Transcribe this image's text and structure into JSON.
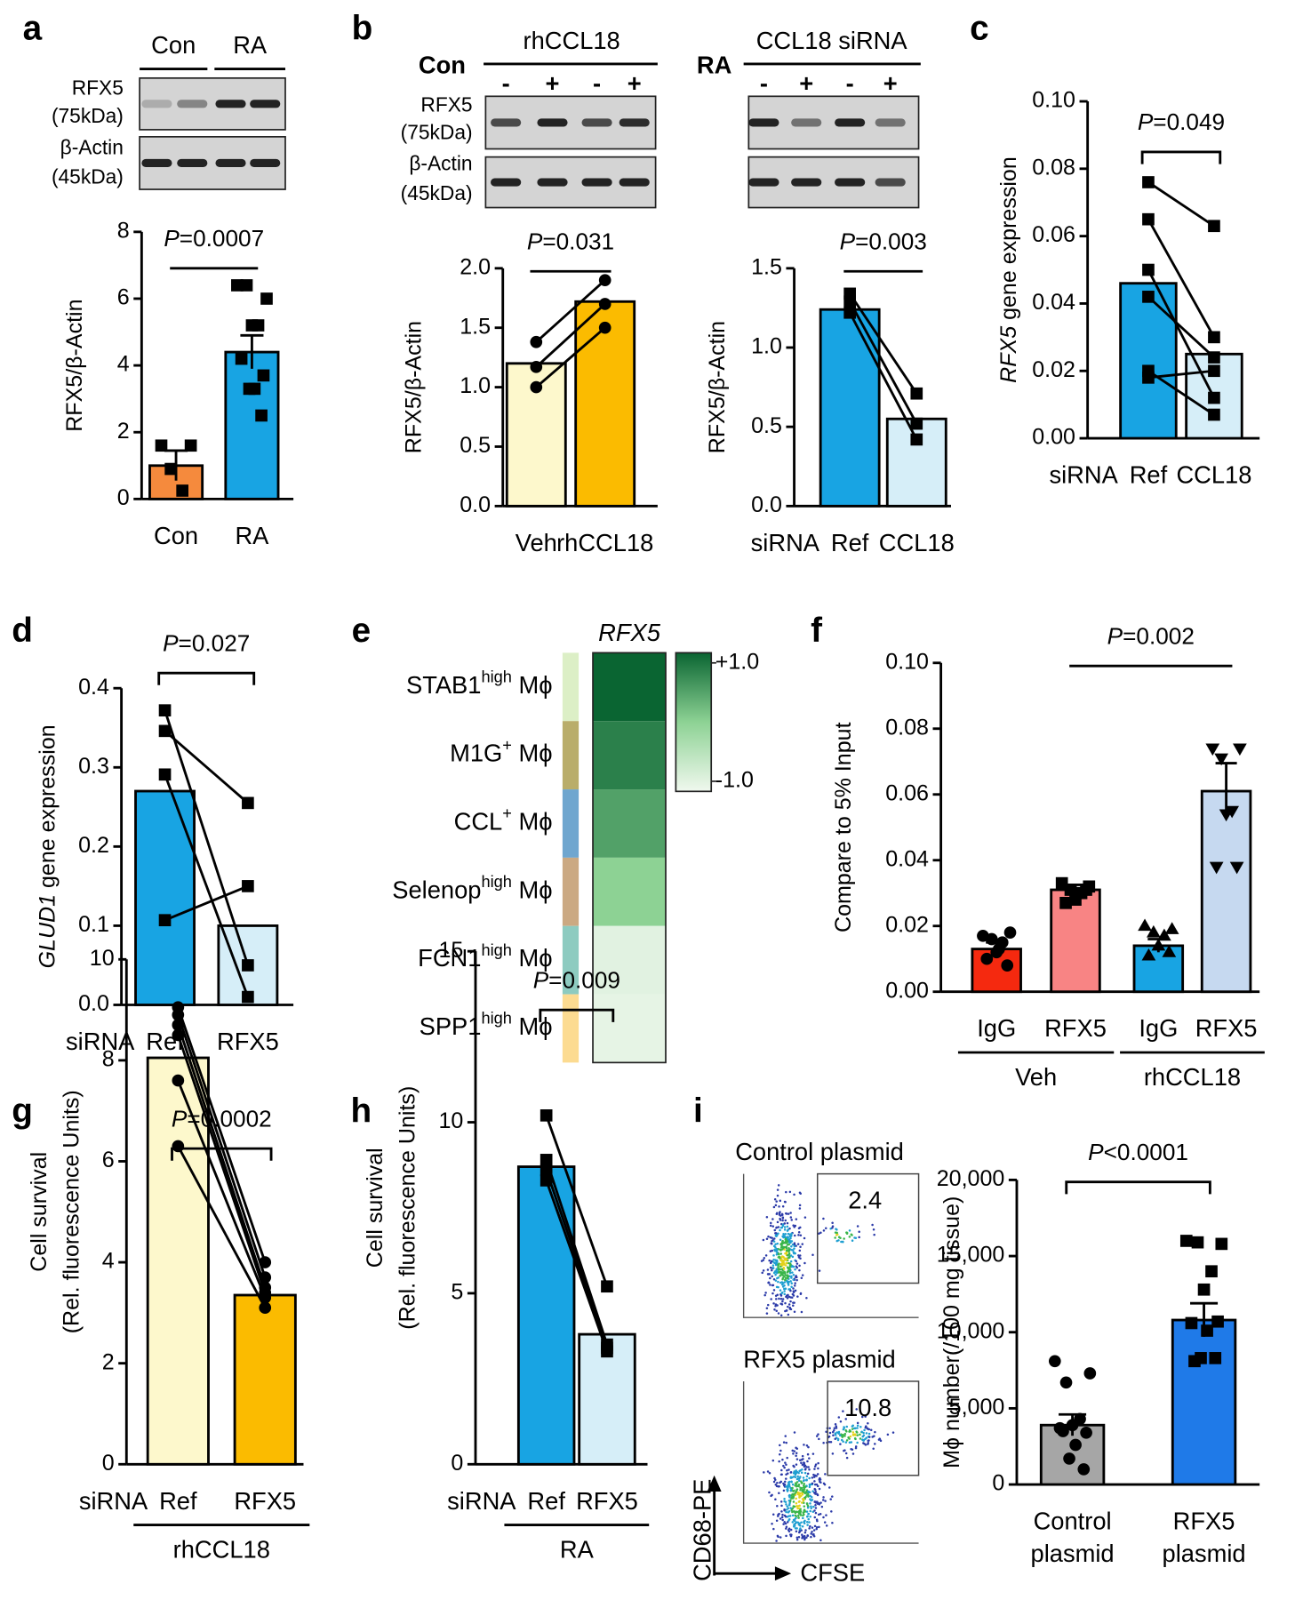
{
  "chart_data": [
    {
      "panel": "a",
      "type": "bar",
      "blot": {
        "columns": [
          "Con",
          "RA"
        ],
        "rows": [
          [
            "RFX5",
            "(75kDa)"
          ],
          [
            "β-Actin",
            "(45kDa)"
          ]
        ]
      },
      "categories": [
        "Con",
        "RA"
      ],
      "values": [
        1.0,
        4.4
      ],
      "errors": [
        0.45,
        0.5
      ],
      "colors": [
        "#f58a3d",
        "#18a4e3"
      ],
      "marker": "square",
      "points": [
        [
          1.6,
          1.6,
          0.9,
          0.25
        ],
        [
          6.4,
          6.0,
          6.4,
          5.2,
          5.2,
          4.2,
          3.7,
          3.3,
          3.3,
          2.5
        ]
      ],
      "paired": false,
      "ylim": [
        0,
        8
      ],
      "yticks": [
        0,
        2,
        4,
        6,
        8
      ],
      "ylabel": "RFX5/β-Actin",
      "annotation": "P=0.0007",
      "bracket": false
    },
    {
      "panel": "b",
      "type": "bar",
      "blot": {
        "treatment": "rhCCL18",
        "condition": "Con",
        "lanes": [
          "-",
          "+",
          "-",
          "+"
        ],
        "rows": [
          [
            "RFX5",
            "(75kDa)"
          ],
          [
            "β-Actin",
            "(45kDa)"
          ]
        ]
      },
      "categories": [
        "Veh",
        "rhCCL18"
      ],
      "values": [
        1.2,
        1.72
      ],
      "colors": [
        "#fdf8cc",
        "#fbbb00"
      ],
      "marker": "circle",
      "points": [
        [
          1.38,
          1.0,
          1.17
        ],
        [
          1.9,
          1.5,
          1.7
        ]
      ],
      "paired": true,
      "ylim": [
        0,
        2
      ],
      "yticks": [
        {
          "value": 0,
          "label": "0.0"
        },
        {
          "value": 0.5,
          "label": "0.5"
        },
        {
          "value": 1,
          "label": "1.0"
        },
        {
          "value": 1.5,
          "label": "1.5"
        },
        {
          "value": 2,
          "label": "2.0"
        }
      ],
      "ylabel": "RFX5/β-Actin",
      "annotation": "P=0.031",
      "bracket": false
    },
    {
      "type": "bar",
      "blot": {
        "treatment": "CCL18 siRNA",
        "condition": "RA",
        "lanes": [
          "-",
          "+",
          "-",
          "+"
        ]
      },
      "x_prefix": "siRNA",
      "categories": [
        "Ref",
        "CCL18"
      ],
      "values": [
        1.24,
        0.55
      ],
      "colors": [
        "#18a4e3",
        "#d6eef8"
      ],
      "marker": "square",
      "points": [
        [
          1.34,
          1.29,
          1.22
        ],
        [
          0.71,
          0.52,
          0.42
        ]
      ],
      "paired": true,
      "ylim": [
        0,
        1.5
      ],
      "yticks": [
        {
          "value": 0,
          "label": "0.0"
        },
        {
          "value": 0.5,
          "label": "0.5"
        },
        {
          "value": 1,
          "label": "1.0"
        },
        {
          "value": 1.5,
          "label": "1.5"
        }
      ],
      "ylabel": "RFX5/β-Actin",
      "annotation": "P=0.003",
      "bracket": false
    },
    {
      "panel": "c",
      "type": "bar",
      "x_prefix": "siRNA",
      "categories": [
        "Ref",
        "CCL18"
      ],
      "values": [
        0.046,
        0.025
      ],
      "colors": [
        "#18a4e3",
        "#d6eef8"
      ],
      "marker": "square",
      "points": [
        [
          0.076,
          0.065,
          0.05,
          0.042,
          0.02,
          0.018
        ],
        [
          0.063,
          0.03,
          0.012,
          0.024,
          0.007,
          0.02
        ]
      ],
      "paired": true,
      "ylim": [
        0,
        0.1
      ],
      "yticks": [
        {
          "value": 0,
          "label": "0.00"
        },
        {
          "value": 0.02,
          "label": "0.02"
        },
        {
          "value": 0.04,
          "label": "0.04"
        },
        {
          "value": 0.06,
          "label": "0.06"
        },
        {
          "value": 0.08,
          "label": "0.08"
        },
        {
          "value": 0.1,
          "label": "0.10"
        }
      ],
      "ylabel": "RFX5 gene expression",
      "ylabel_italic_word": true,
      "annotation": "P=0.049",
      "bracket": true
    },
    {
      "panel": "d",
      "type": "bar",
      "x_prefix": "siRNA",
      "categories": [
        "Ref",
        "RFX5"
      ],
      "values": [
        0.27,
        0.1
      ],
      "colors": [
        "#18a4e3",
        "#d6eef8"
      ],
      "marker": "square",
      "points": [
        [
          0.372,
          0.346,
          0.291,
          0.107
        ],
        [
          0.05,
          0.255,
          0.01,
          0.15
        ]
      ],
      "paired": true,
      "ylim": [
        0,
        0.4
      ],
      "yticks": [
        {
          "value": 0,
          "label": "0.0"
        },
        {
          "value": 0.1,
          "label": "0.1"
        },
        {
          "value": 0.2,
          "label": "0.2"
        },
        {
          "value": 0.3,
          "label": "0.3"
        },
        {
          "value": 0.4,
          "label": "0.4"
        }
      ],
      "ylabel": "GLUD1 gene expression",
      "ylabel_italic_word": true,
      "annotation": "P=0.027",
      "bracket": true
    },
    {
      "panel": "e",
      "type": "heatmap",
      "title": "RFX5",
      "rows": [
        {
          "label": "STAB1",
          "sup": "high",
          "suffix": " Mϕ",
          "color": "#dcefc6"
        },
        {
          "label": "M1G",
          "sup": "+",
          "suffix": " Mϕ",
          "color": "#b9ad6a"
        },
        {
          "label": "CCL",
          "sup": "+",
          "suffix": " Mϕ",
          "color": "#6fa6cf"
        },
        {
          "label": "Selenop",
          "sup": "high",
          "suffix": " Mϕ",
          "color": "#cba982"
        },
        {
          "label": "FCN1",
          "sup": "high",
          "suffix": " Mϕ",
          "color": "#8dcbc0"
        },
        {
          "label": "SPP1",
          "sup": "high",
          "suffix": " Mϕ",
          "color": "#fcdb91"
        }
      ],
      "values": [
        1.0,
        0.75,
        0.45,
        0.0,
        -0.85,
        -0.9
      ],
      "clim": [
        -1,
        1
      ],
      "cmap": [
        "#f0f8ee",
        "#8dd294",
        "#0a6532"
      ],
      "cmap_ticks": [
        {
          "value": 1,
          "label": "+1.0"
        },
        {
          "value": -1,
          "label": "-1.0"
        }
      ]
    },
    {
      "panel": "f",
      "type": "bar",
      "categories": [
        "IgG",
        "RFX5",
        "IgG",
        "RFX5"
      ],
      "groups": [
        "Veh",
        "rhCCL18"
      ],
      "values": [
        0.013,
        0.031,
        0.014,
        0.061
      ],
      "errors": [
        0.002,
        0.0015,
        0.002,
        0.0085
      ],
      "colors": [
        "#f5290f",
        "#f88484",
        "#18a4e3",
        "#c6d9f0"
      ],
      "markers": [
        "circle",
        "square",
        "triangle",
        "triangle-down"
      ],
      "points": [
        [
          0.017,
          0.018,
          0.016,
          0.015,
          0.012,
          0.01,
          0.008,
          0.013
        ],
        [
          0.033,
          0.032,
          0.031,
          0.03,
          0.028,
          0.027,
          0.031
        ],
        [
          0.02,
          0.019,
          0.018,
          0.017,
          0.014,
          0.011,
          0.012
        ],
        [
          0.074,
          0.074,
          0.071,
          0.055,
          0.054,
          0.038,
          0.038
        ]
      ],
      "paired": false,
      "ylim": [
        0,
        0.1
      ],
      "yticks": [
        {
          "value": 0,
          "label": "0.00"
        },
        {
          "value": 0.02,
          "label": "0.02"
        },
        {
          "value": 0.04,
          "label": "0.04"
        },
        {
          "value": 0.06,
          "label": "0.06"
        },
        {
          "value": 0.08,
          "label": "0.08"
        },
        {
          "value": 0.1,
          "label": "0.10"
        }
      ],
      "ylabel": "Compare to 5% Input",
      "annotation": "P=0.002",
      "comparison": [
        1,
        3
      ],
      "bracket": false
    },
    {
      "panel": "g",
      "type": "bar",
      "x_prefix": "siRNA",
      "categories": [
        "Ref",
        "RFX5"
      ],
      "groups": [
        "rhCCL18"
      ],
      "values": [
        8.05,
        3.35
      ],
      "colors": [
        "#fdf8cc",
        "#fbbb00"
      ],
      "marker": "circle",
      "points": [
        [
          9.05,
          8.9,
          8.7,
          8.5,
          7.6,
          6.3
        ],
        [
          4.0,
          3.7,
          3.5,
          3.4,
          3.3,
          3.1
        ]
      ],
      "paired": true,
      "ylim": [
        0,
        10
      ],
      "yticks": [
        0,
        2,
        4,
        6,
        8,
        10
      ],
      "ylabel": [
        "Cell survival",
        "(Rel. fluorescence Units)"
      ],
      "annotation": "P=0.0002",
      "bracket": true
    },
    {
      "panel": "h",
      "type": "bar",
      "x_prefix": "siRNA",
      "categories": [
        "Ref",
        "RFX5"
      ],
      "groups": [
        "RA"
      ],
      "values": [
        8.7,
        3.8
      ],
      "colors": [
        "#18a4e3",
        "#d6eef8"
      ],
      "marker": "square",
      "points": [
        [
          10.2,
          8.9,
          8.6,
          8.3
        ],
        [
          5.2,
          3.5,
          3.4,
          3.3
        ]
      ],
      "paired": true,
      "ylim": [
        0,
        15
      ],
      "yticks": [
        0,
        5,
        10,
        15
      ],
      "ylabel": [
        "Cell survival",
        "(Rel. fluorescence Units)"
      ],
      "annotation": "P=0.009",
      "bracket": true
    },
    {
      "panel": "i",
      "type": "flow",
      "plots": [
        {
          "title": "Control plasmid",
          "gate_value": 2.4
        },
        {
          "title": "RFX5 plasmid",
          "gate_value": 10.8
        }
      ],
      "ylabel": "CD68-PE",
      "xlabel": "CFSE"
    },
    {
      "type": "bar",
      "categories": [
        [
          "Control",
          "plasmid"
        ],
        [
          "RFX5",
          "plasmid"
        ]
      ],
      "values": [
        3900,
        10800
      ],
      "errors": [
        700,
        1100
      ],
      "colors": [
        "#a6a6a6",
        "#1f7ae8"
      ],
      "markers": [
        "circle",
        "square"
      ],
      "points": [
        [
          8100,
          7300,
          6700,
          4300,
          3900,
          3700,
          3400,
          2600,
          1700,
          1000,
          3500
        ],
        [
          16000,
          15800,
          15900,
          14000,
          12800,
          10600,
          10700,
          10100,
          8300,
          8300,
          8100
        ]
      ],
      "paired": false,
      "ylim": [
        0,
        20000
      ],
      "yticks": [
        0,
        {
          "value": 5000,
          "label": "5,000"
        },
        {
          "value": 10000,
          "label": "10,000"
        },
        {
          "value": 15000,
          "label": "15,000"
        },
        {
          "value": 20000,
          "label": "20,000"
        }
      ],
      "ylabel": "Mϕ number(/100 mg tissue)",
      "annotation": "P<0.0001",
      "bracket": true
    }
  ]
}
